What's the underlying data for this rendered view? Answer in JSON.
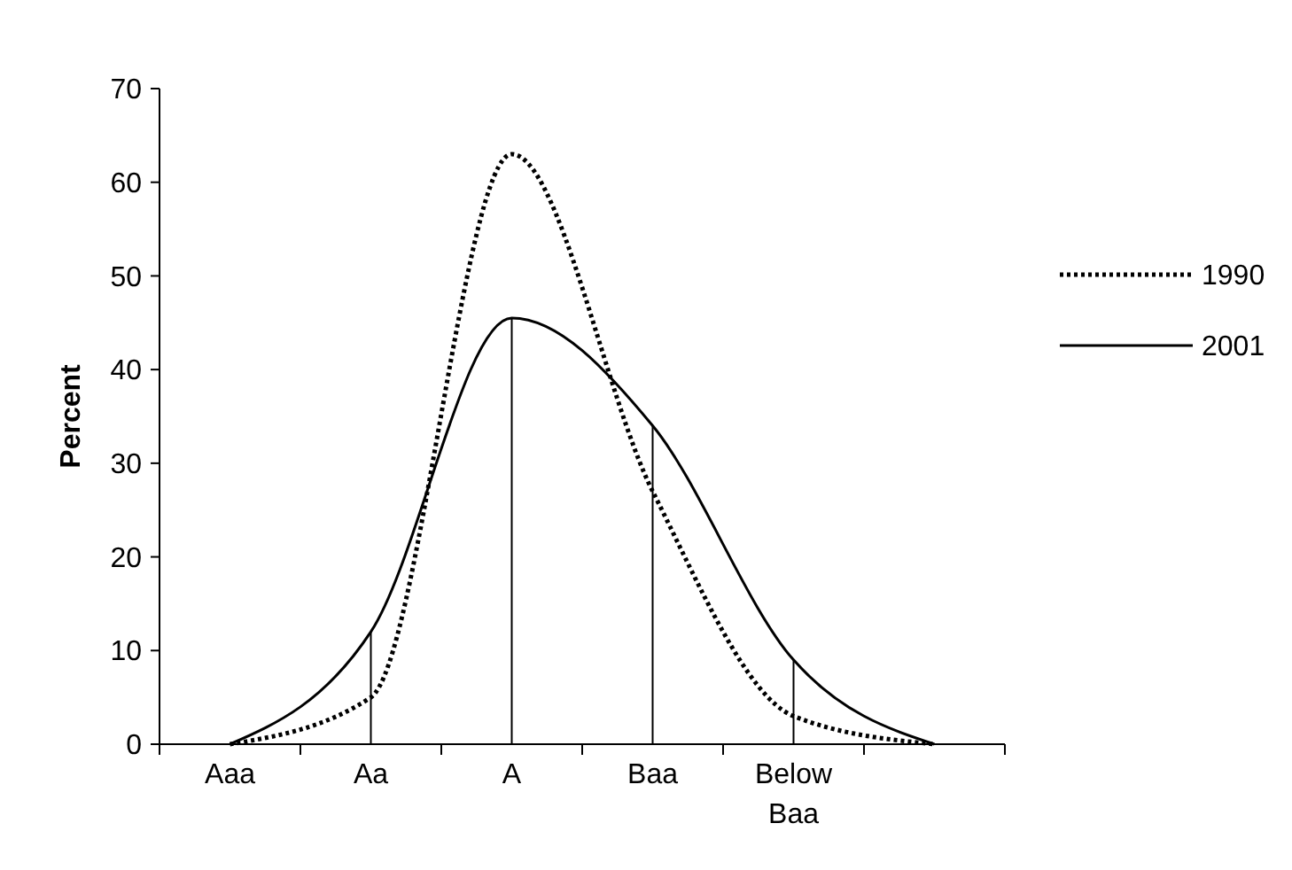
{
  "chart_data": {
    "type": "line",
    "ylabel": "Percent",
    "categories": [
      "Aaa",
      "Aa",
      "A",
      "Baa",
      "Below\nBaa",
      null
    ],
    "ylim": [
      0,
      70
    ],
    "yticks": [
      0,
      10,
      20,
      30,
      40,
      50,
      60,
      70
    ],
    "legend": "right",
    "series": [
      {
        "name": "1990",
        "color": "#000000",
        "line_style": "dotted",
        "values": [
          0,
          5,
          63,
          27,
          3,
          0
        ]
      },
      {
        "name": "2001",
        "color": "#000000",
        "line_style": "solid",
        "values": [
          0,
          12,
          45.5,
          34,
          9,
          0
        ]
      },
      {
        "type": "bar",
        "color": "#000000",
        "values": [
          null,
          12,
          45.5,
          34,
          9,
          null
        ]
      }
    ]
  }
}
